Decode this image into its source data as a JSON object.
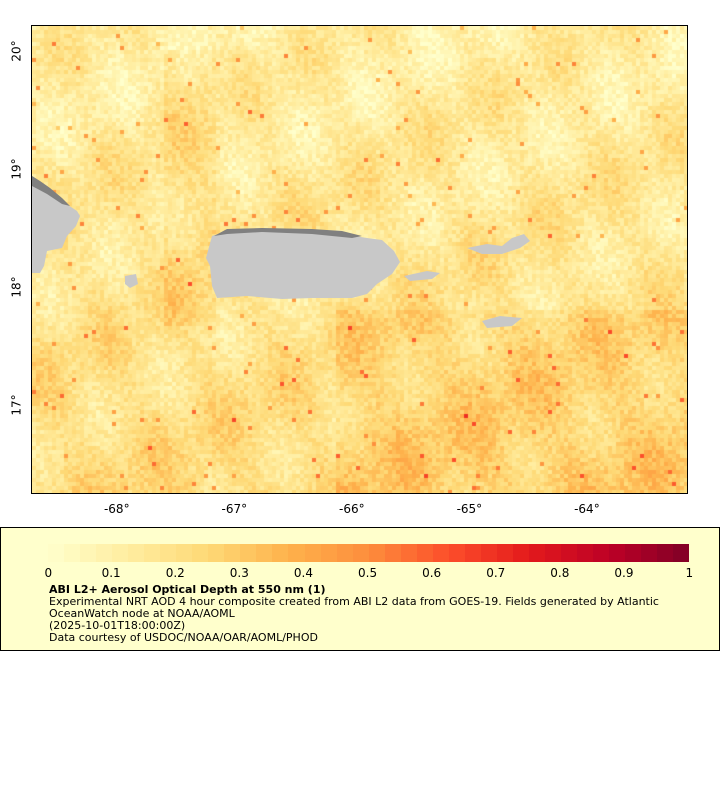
{
  "map": {
    "lon_ticks": [
      "-68°",
      "-67°",
      "-66°",
      "-65°",
      "-64°"
    ],
    "lat_ticks": [
      "20°",
      "19°",
      "18°",
      "17°"
    ],
    "lon_range": [
      -68.74,
      -63.15
    ],
    "lat_range": [
      16.25,
      20.23
    ],
    "land_color": "#c8c8c8",
    "nodata_color": "#808080"
  },
  "legend": {
    "colorbar_ticks": [
      "0",
      "0.1",
      "0.2",
      "0.3",
      "0.4",
      "0.5",
      "0.6",
      "0.7",
      "0.8",
      "0.9",
      "1"
    ],
    "colorbar_range": [
      0,
      1
    ],
    "colormap": [
      "#ffffcc",
      "#ffeda0",
      "#fed976",
      "#feb24c",
      "#fd8d3c",
      "#fc4e2a",
      "#e31a1c",
      "#bd0026",
      "#800026"
    ],
    "title": "ABI L2+ Aerosol Optical Depth at 550 nm (1)",
    "line1": "Experimental NRT AOD 4 hour composite created from ABI L2 data from GOES-19. Fields generated by Atlantic",
    "line2": "OceanWatch node at NOAA/AOML",
    "time": "(2025-10-01T18:00:00Z)",
    "credit": "Data courtesy of USDOC/NOAA/OAR/AOML/PHOD"
  }
}
